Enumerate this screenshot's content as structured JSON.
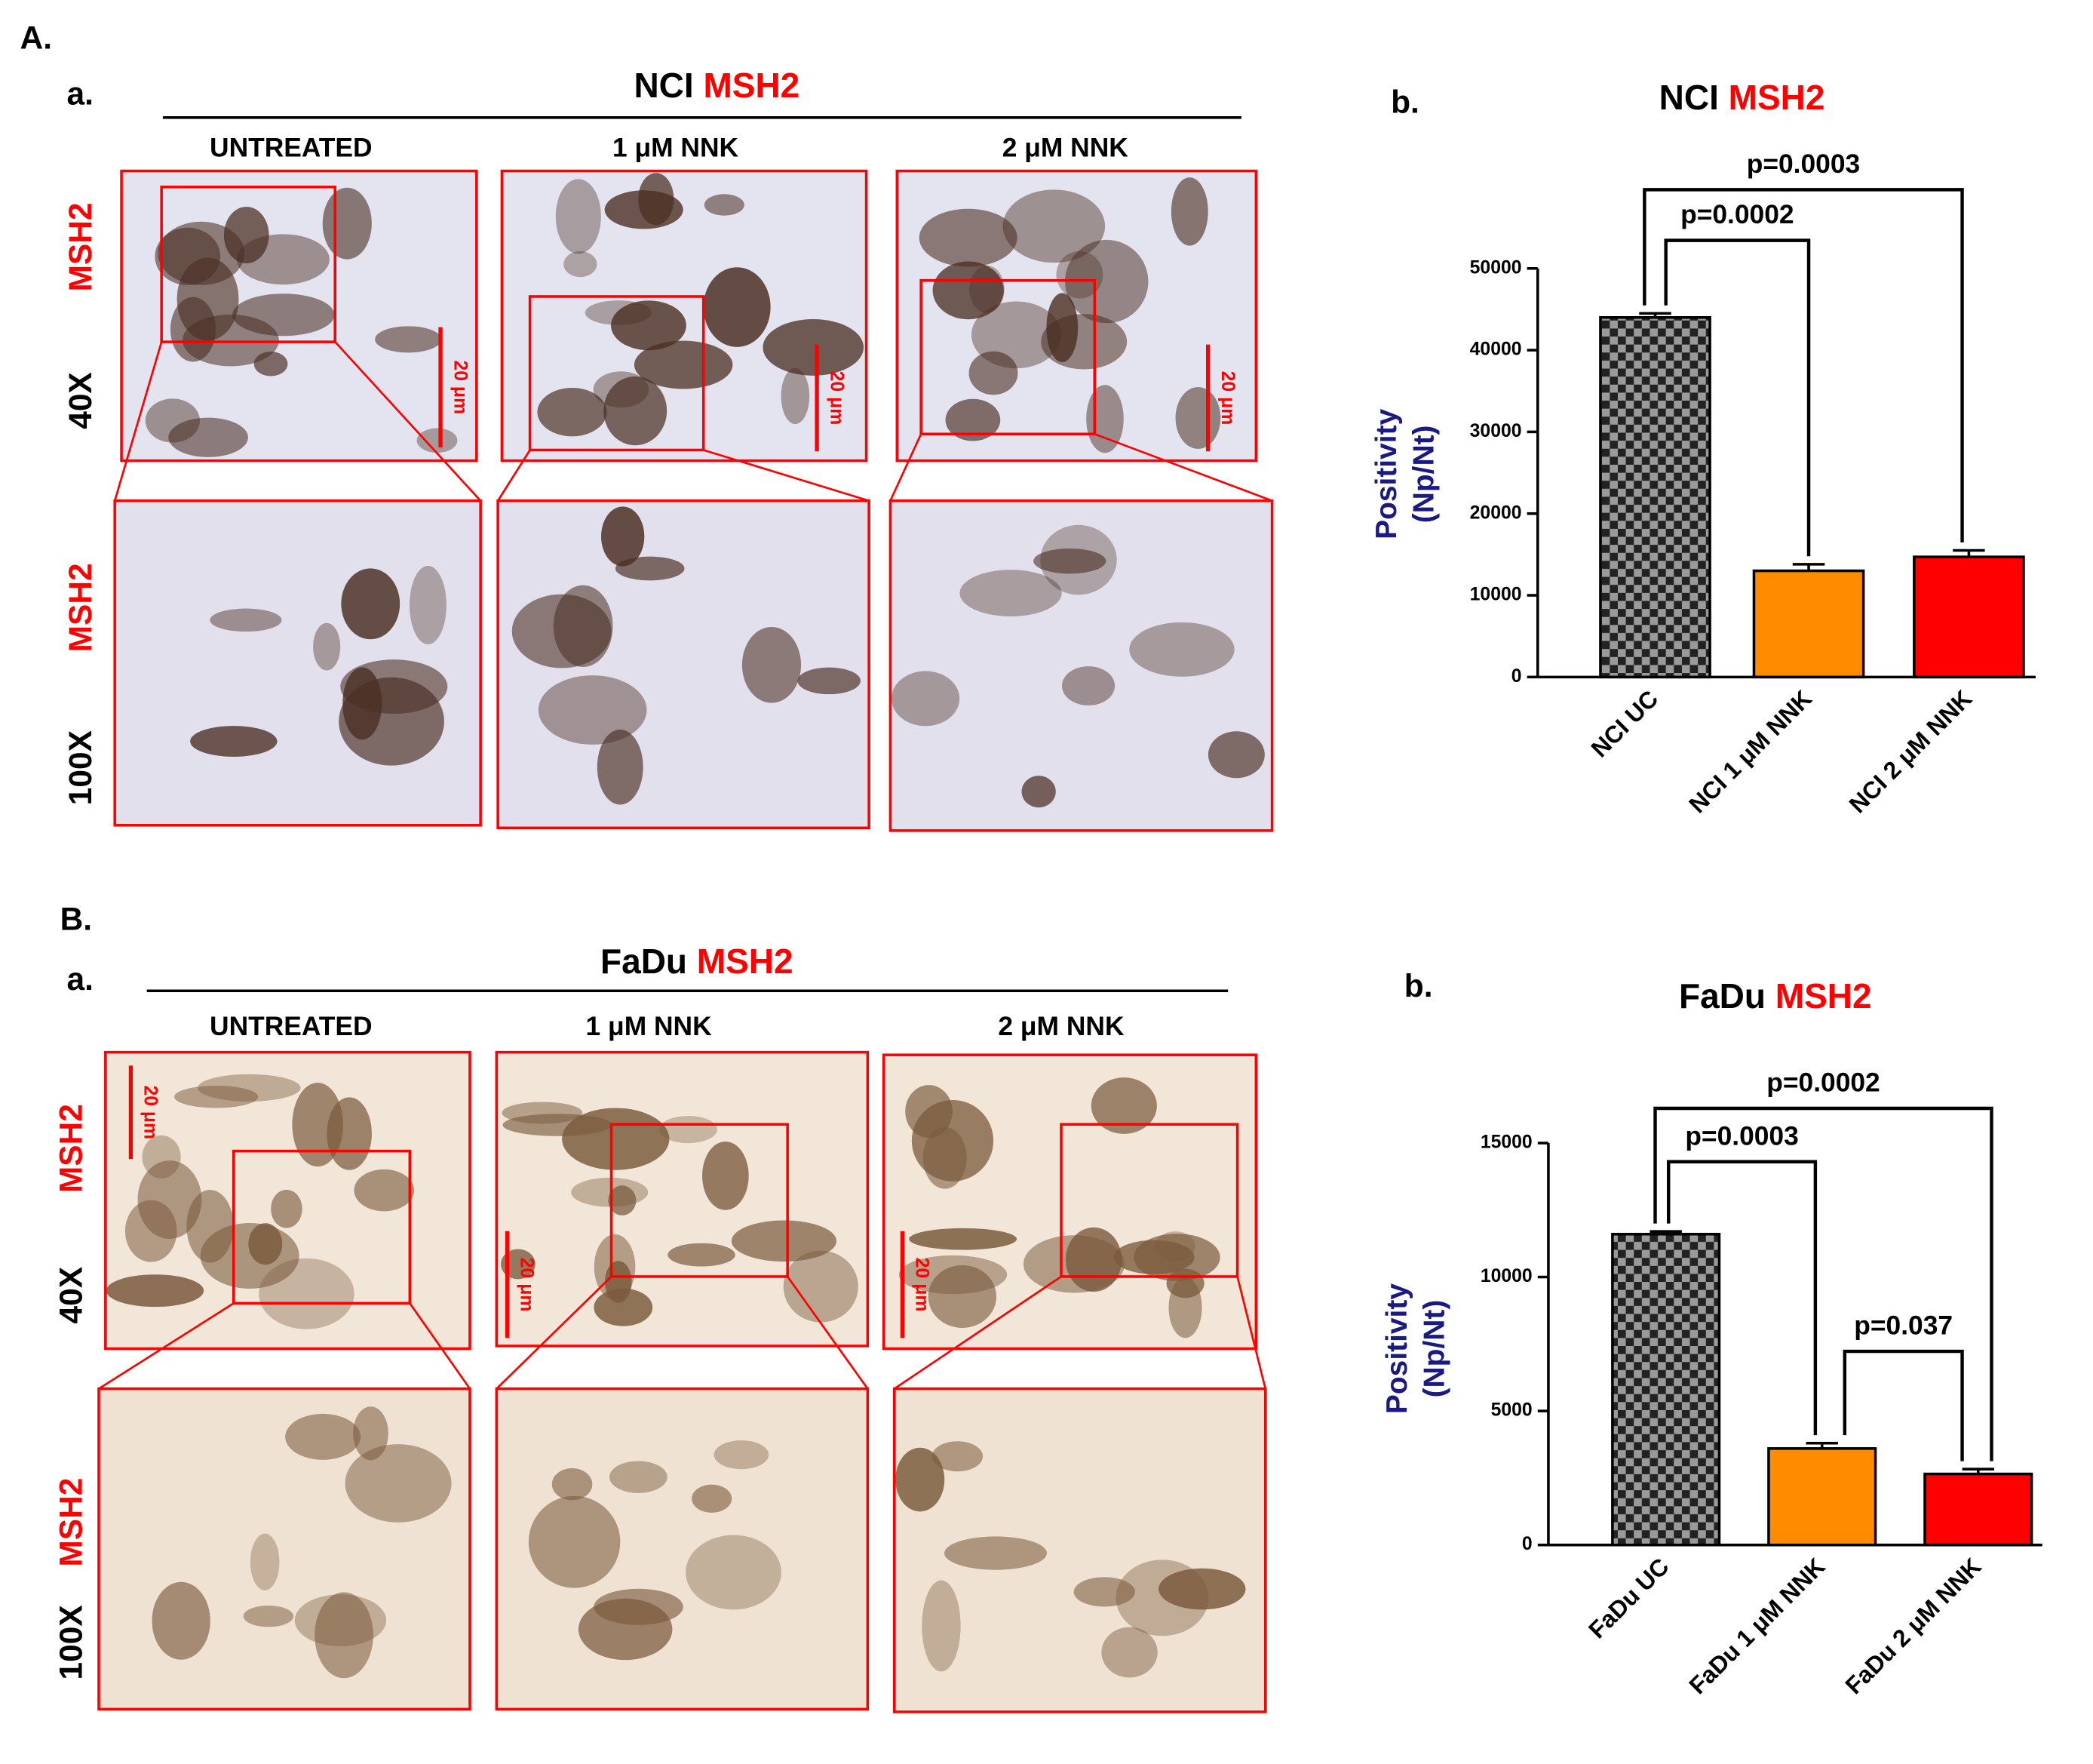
{
  "chart_data": [
    {
      "type": "bar",
      "panel": "b.",
      "title": [
        "NCI",
        "MSH2"
      ],
      "y_label": [
        "Positivity",
        "(Np/Nt)"
      ],
      "categories": [
        "NCI UC",
        "NCI 1 μM NNK",
        "NCI 2 μM NNK"
      ],
      "values": [
        44000,
        13000,
        14700
      ],
      "errors": [
        500,
        800,
        800
      ],
      "colors": [
        "checkered",
        "#ff8c00",
        "#ff0000"
      ],
      "ylim": [
        0,
        50000
      ],
      "yticks": [
        0,
        10000,
        20000,
        30000,
        40000,
        50000
      ],
      "annotations": [
        "p=0.0003",
        "p=0.0002"
      ]
    },
    {
      "type": "bar",
      "panel": "b.",
      "title": [
        "FaDu",
        "MSH2"
      ],
      "y_label": [
        "Positivity",
        "(Np/Nt)"
      ],
      "categories": [
        "FaDu UC",
        "FaDu 1 μM NNK",
        "FaDu 2 μM NNK"
      ],
      "values": [
        11600,
        3600,
        2650
      ],
      "errors": [
        100,
        200,
        180
      ],
      "colors": [
        "checkered",
        "#ff8c00",
        "#ff0000"
      ],
      "ylim": [
        0,
        15000
      ],
      "yticks": [
        0,
        5000,
        10000,
        15000
      ],
      "annotations": [
        "p=0.0002",
        "p=0.0003",
        "p=0.037"
      ]
    }
  ],
  "panels": [
    {
      "label": "A.",
      "sub": "a.",
      "title": [
        "NCI",
        "MSH2"
      ],
      "columns": [
        "UNTREATED",
        "1 μM NNK",
        "2 μM NNK"
      ],
      "rows": [
        [
          "MSH2",
          "40X"
        ],
        [
          "MSH2",
          "100X"
        ]
      ],
      "scale_bar": "20 μm"
    },
    {
      "label": "B.",
      "sub": "a.",
      "title": [
        "FaDu",
        "MSH2"
      ],
      "columns": [
        "UNTREATED",
        "1 μM NNK",
        "2 μM NNK"
      ],
      "rows": [
        [
          "MSH2",
          "40X"
        ],
        [
          "MSH2",
          "100X"
        ]
      ],
      "scale_bar": "20 μm"
    }
  ]
}
